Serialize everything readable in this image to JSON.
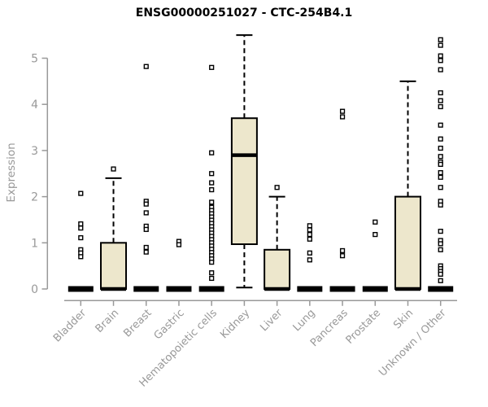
{
  "chart_data": {
    "type": "boxplot",
    "title": "ENSG00000251027 - CTC-254B4.1",
    "ylabel": "Expression",
    "xlabel": "",
    "ylim": [
      0,
      5.6
    ],
    "yticks": [
      0,
      1,
      2,
      3,
      4,
      5
    ],
    "grid": false,
    "legend": false,
    "categories": [
      "Bladder",
      "Brain",
      "Breast",
      "Gastric",
      "Hematopoietic cells",
      "Kidney",
      "Liver",
      "Lung",
      "Pancreas",
      "Prostate",
      "Skin",
      "Unknown / Other"
    ],
    "series": [
      {
        "name": "Bladder",
        "q1": 0,
        "median": 0,
        "q3": 0,
        "whisker_low": 0,
        "whisker_high": 0,
        "outliers": [
          2.07,
          1.41,
          1.32,
          1.11,
          0.85,
          0.78,
          0.7
        ]
      },
      {
        "name": "Brain",
        "q1": 0,
        "median": 0,
        "q3": 1.0,
        "whisker_low": 0,
        "whisker_high": 2.4,
        "outliers": [
          2.6
        ]
      },
      {
        "name": "Breast",
        "q1": 0,
        "median": 0,
        "q3": 0,
        "whisker_low": 0,
        "whisker_high": 0,
        "outliers": [
          4.82,
          1.9,
          1.84,
          1.65,
          1.36,
          1.29,
          0.9,
          0.8
        ]
      },
      {
        "name": "Gastric",
        "q1": 0,
        "median": 0,
        "q3": 0,
        "whisker_low": 0,
        "whisker_high": 0,
        "outliers": [
          1.03,
          0.96
        ]
      },
      {
        "name": "Hematopoietic cells",
        "q1": 0,
        "median": 0,
        "q3": 0,
        "whisker_low": 0,
        "whisker_high": 0,
        "outliers": [
          4.8,
          2.95,
          2.5,
          2.3,
          2.15,
          1.88,
          1.77,
          1.7,
          1.63,
          1.56,
          1.49,
          1.42,
          1.35,
          1.28,
          1.21,
          1.14,
          1.07,
          1.0,
          0.93,
          0.86,
          0.79,
          0.72,
          0.65,
          0.58,
          0.35,
          0.23
        ]
      },
      {
        "name": "Kidney",
        "q1": 0.97,
        "median": 2.9,
        "q3": 3.7,
        "whisker_low": 0.03,
        "whisker_high": 5.5,
        "outliers": []
      },
      {
        "name": "Liver",
        "q1": 0,
        "median": 0,
        "q3": 0.85,
        "whisker_low": 0,
        "whisker_high": 2.0,
        "outliers": [
          2.2
        ]
      },
      {
        "name": "Lung",
        "q1": 0,
        "median": 0,
        "q3": 0,
        "whisker_low": 0,
        "whisker_high": 0,
        "outliers": [
          1.37,
          1.28,
          1.18,
          1.08,
          0.78,
          0.63
        ]
      },
      {
        "name": "Pancreas",
        "q1": 0,
        "median": 0,
        "q3": 0,
        "whisker_low": 0,
        "whisker_high": 0,
        "outliers": [
          3.85,
          3.73,
          0.83,
          0.72
        ]
      },
      {
        "name": "Prostate",
        "q1": 0,
        "median": 0,
        "q3": 0,
        "whisker_low": 0,
        "whisker_high": 0,
        "outliers": [
          1.45,
          1.18
        ]
      },
      {
        "name": "Skin",
        "q1": 0,
        "median": 0,
        "q3": 2.0,
        "whisker_low": 0,
        "whisker_high": 4.5,
        "outliers": []
      },
      {
        "name": "Unknown / Other",
        "q1": 0,
        "median": 0,
        "q3": 0,
        "whisker_low": 0,
        "whisker_high": 0,
        "outliers": [
          5.4,
          5.28,
          5.05,
          4.95,
          4.75,
          4.25,
          4.08,
          3.95,
          3.55,
          3.25,
          3.05,
          2.87,
          2.75,
          2.7,
          2.52,
          2.42,
          2.2,
          1.9,
          1.82,
          1.25,
          1.05,
          0.98,
          0.85,
          0.5,
          0.44,
          0.38,
          0.32,
          0.18
        ]
      }
    ],
    "colors": {
      "box_fill": "#EDE7CC",
      "box_stroke": "#000000",
      "median": "#000000",
      "outlier_stroke": "#000000",
      "outlier_fill": "#ffffff",
      "axis": "#999999",
      "tick_label": "#999999",
      "title": "#000000",
      "background": "#ffffff"
    }
  }
}
